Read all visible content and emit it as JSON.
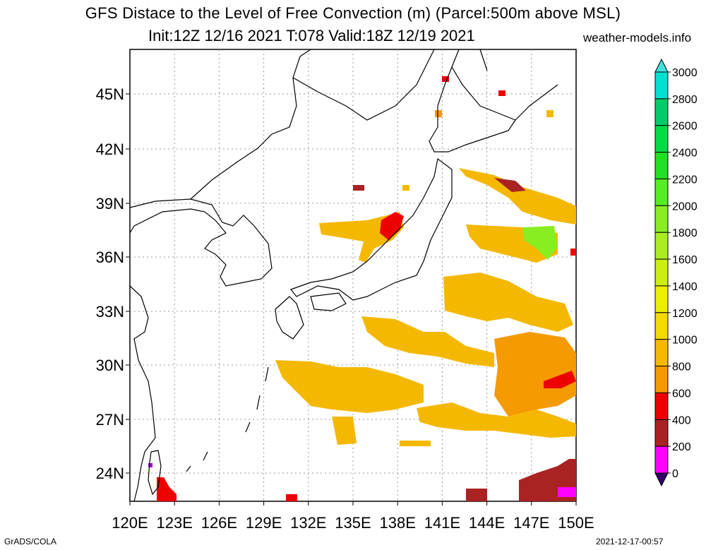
{
  "header": {
    "title_line1": "GFS Distace to the Level of Free Convection (m) (Parcel:500m above MSL)",
    "title_line2": "Init:12Z 12/16 2021 T:078 Valid:18Z 12/19 2021",
    "brand": "weather-models.info"
  },
  "map": {
    "lon_labels": [
      "120E",
      "123E",
      "126E",
      "129E",
      "132E",
      "135E",
      "138E",
      "141E",
      "144E",
      "147E",
      "150E"
    ],
    "lat_labels": [
      "45N",
      "42N",
      "39N",
      "36N",
      "33N",
      "30N",
      "27N",
      "24N"
    ],
    "gridlines": true
  },
  "colorbar": {
    "ticks": [
      "3000",
      "2800",
      "2600",
      "2400",
      "2200",
      "2000",
      "1800",
      "1600",
      "1400",
      "1200",
      "1000",
      "800",
      "600",
      "400",
      "200",
      "0"
    ],
    "colors": [
      "#00e0d0",
      "#00cc66",
      "#00dd44",
      "#22e022",
      "#55ee22",
      "#88ee22",
      "#aaee22",
      "#ccee11",
      "#eeee00",
      "#f5d800",
      "#f5b800",
      "#f59a00",
      "#ee0000",
      "#aa2222",
      "#ff00ff",
      "#440088"
    ],
    "top_arrow_color": "#44e0e0",
    "bottom_arrow_color": "#330066"
  },
  "footer": {
    "left": "GrADS/COLA",
    "right": "2021-12-17-00:57"
  }
}
